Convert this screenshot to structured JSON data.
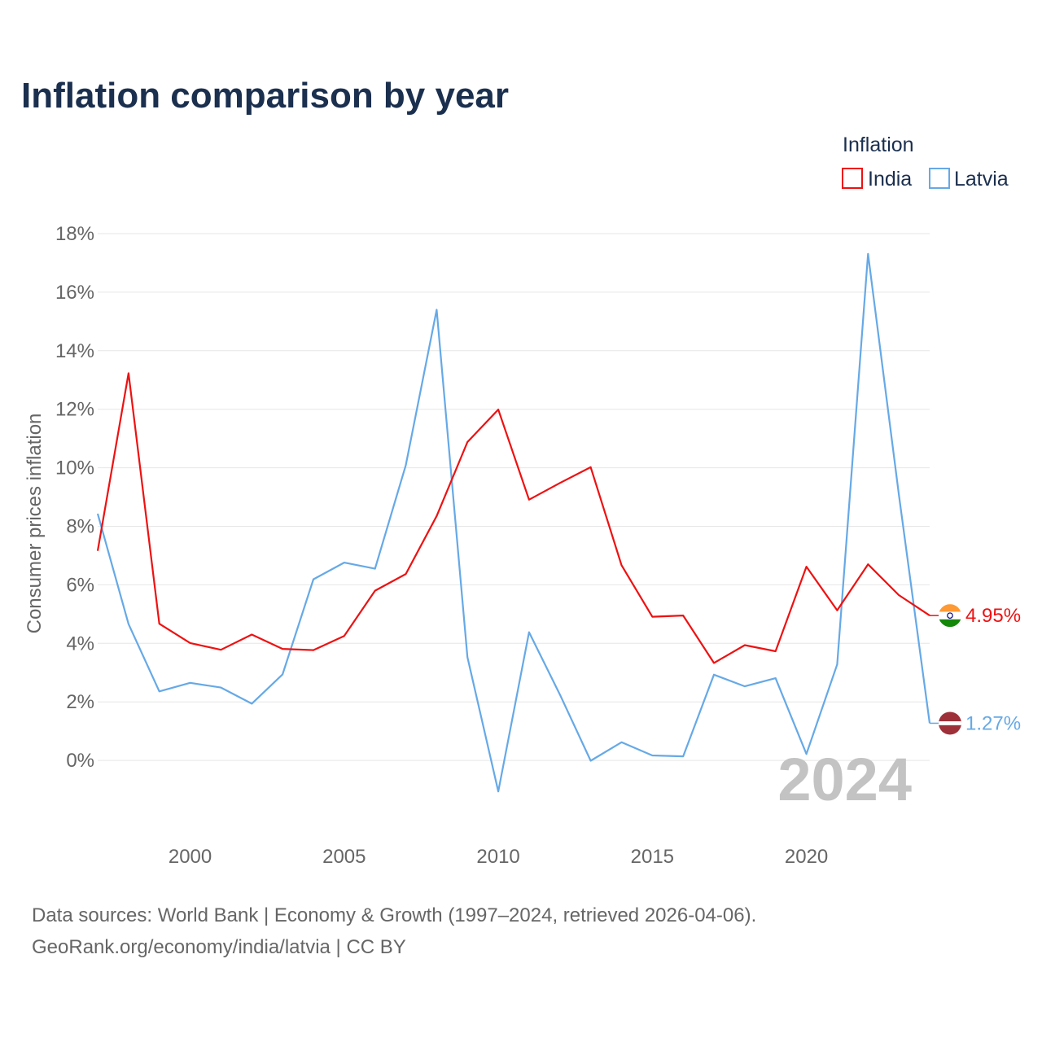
{
  "title": "Inflation comparison by year",
  "legend": {
    "title": "Inflation",
    "items": [
      {
        "label": "India",
        "color": "#ee1111"
      },
      {
        "label": "Latvia",
        "color": "#66a9e6"
      }
    ]
  },
  "year_watermark": "2024",
  "end_labels": {
    "india": "4.95%",
    "latvia": "1.27%"
  },
  "flags": {
    "india": "india-flag-icon",
    "latvia": "latvia-flag-icon"
  },
  "sources": {
    "line1": "Data sources: World Bank | Economy & Growth (1997–2024, retrieved 2026-04-06).",
    "line2": "GeoRank.org/economy/india/latvia | CC BY"
  },
  "chart_data": {
    "type": "line",
    "title": "Inflation comparison by year",
    "xlabel": "",
    "ylabel": "Consumer prices inflation",
    "xlim": [
      1997,
      2024
    ],
    "ylim": [
      -2,
      18
    ],
    "yticks": [
      0,
      2,
      4,
      6,
      8,
      10,
      12,
      14,
      16,
      18
    ],
    "ytick_labels": [
      "0%",
      "2%",
      "4%",
      "6%",
      "8%",
      "10%",
      "12%",
      "14%",
      "16%",
      "18%"
    ],
    "xticks": [
      2000,
      2005,
      2010,
      2015,
      2020
    ],
    "xtick_labels": [
      "2000",
      "2005",
      "2010",
      "2015",
      "2020"
    ],
    "grid": true,
    "legend_position": "top-right",
    "x": [
      1997,
      1998,
      1999,
      2000,
      2001,
      2002,
      2003,
      2004,
      2005,
      2006,
      2007,
      2008,
      2009,
      2010,
      2011,
      2012,
      2013,
      2014,
      2015,
      2016,
      2017,
      2018,
      2019,
      2020,
      2021,
      2022,
      2023,
      2024
    ],
    "series": [
      {
        "name": "India",
        "color": "#ee1111",
        "values": [
          7.16,
          13.23,
          4.67,
          4.01,
          3.78,
          4.3,
          3.81,
          3.77,
          4.25,
          5.8,
          6.37,
          8.35,
          10.88,
          11.99,
          8.91,
          9.48,
          10.02,
          6.67,
          4.91,
          4.95,
          3.33,
          3.94,
          3.73,
          6.62,
          5.13,
          6.7,
          5.65,
          4.95
        ]
      },
      {
        "name": "Latvia",
        "color": "#66a9e6",
        "values": [
          8.43,
          4.66,
          2.36,
          2.65,
          2.49,
          1.94,
          2.94,
          6.19,
          6.76,
          6.55,
          10.09,
          15.4,
          3.53,
          -1.06,
          4.38,
          2.25,
          -0.01,
          0.62,
          0.17,
          0.14,
          2.93,
          2.53,
          2.81,
          0.22,
          3.28,
          17.31,
          9.1,
          1.27
        ]
      }
    ]
  }
}
